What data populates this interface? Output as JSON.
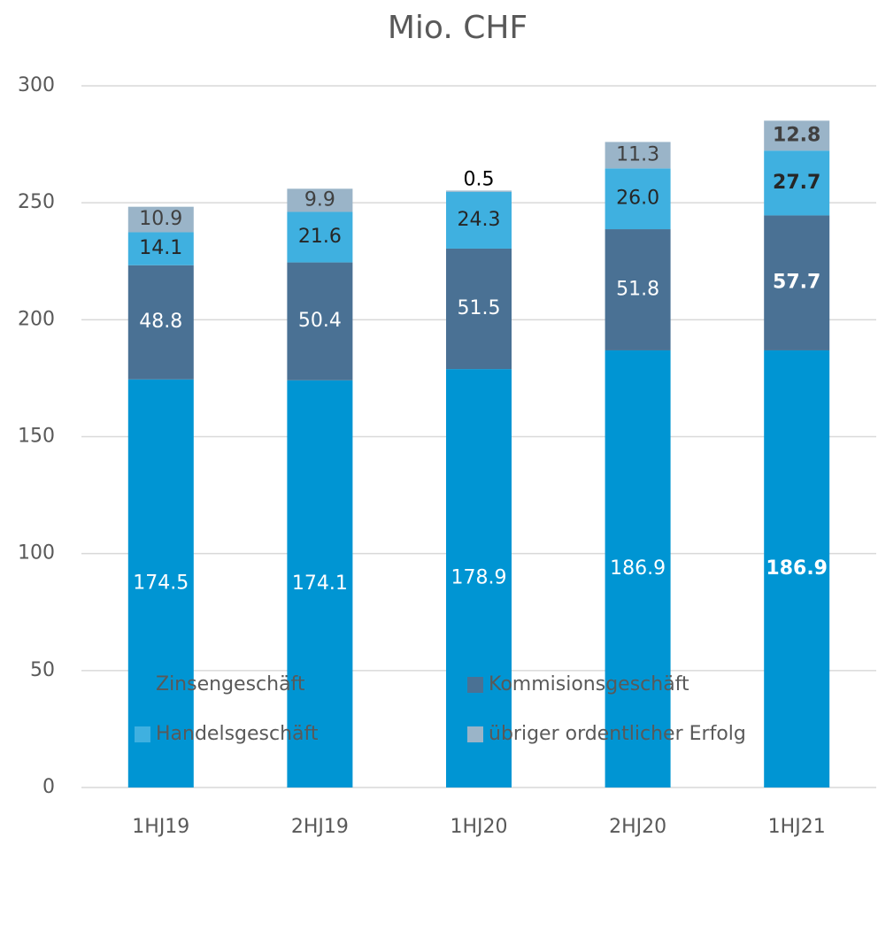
{
  "chart_data": {
    "type": "stacked_bar",
    "title": "Mio. CHF",
    "categories": [
      "1HJ19",
      "2HJ19",
      "1HJ20",
      "2HJ20",
      "1HJ21"
    ],
    "series": [
      {
        "name": "Zinsengeschäft",
        "color": "#0095d3",
        "values": [
          174.5,
          174.1,
          178.9,
          186.9,
          186.9
        ]
      },
      {
        "name": "Kommisionsgeschäft",
        "color": "#4a7194",
        "values": [
          48.8,
          50.4,
          51.5,
          51.8,
          57.7
        ]
      },
      {
        "name": "Handelsgeschäft",
        "color": "#3fb0e0",
        "values": [
          14.1,
          21.6,
          24.3,
          26.0,
          27.7
        ]
      },
      {
        "name": "übriger ordentlicher Erfolg",
        "color": "#9ab4c8",
        "values": [
          10.9,
          9.9,
          0.5,
          11.3,
          12.8
        ]
      }
    ],
    "value_labels": [
      [
        "174.5",
        "174.1",
        "178.9",
        "186.9",
        "186.9"
      ],
      [
        "48.8",
        "50.4",
        "51.5",
        "51.8",
        "57.7"
      ],
      [
        "14.1",
        "21.6",
        "24.3",
        "26.0",
        "27.7"
      ],
      [
        "10.9",
        "9.9",
        "0.5",
        "11.3",
        "12.8"
      ]
    ],
    "ylim": [
      0,
      300
    ],
    "yticks": [
      0,
      50,
      100,
      150,
      200,
      250,
      300
    ],
    "grid": true
  }
}
